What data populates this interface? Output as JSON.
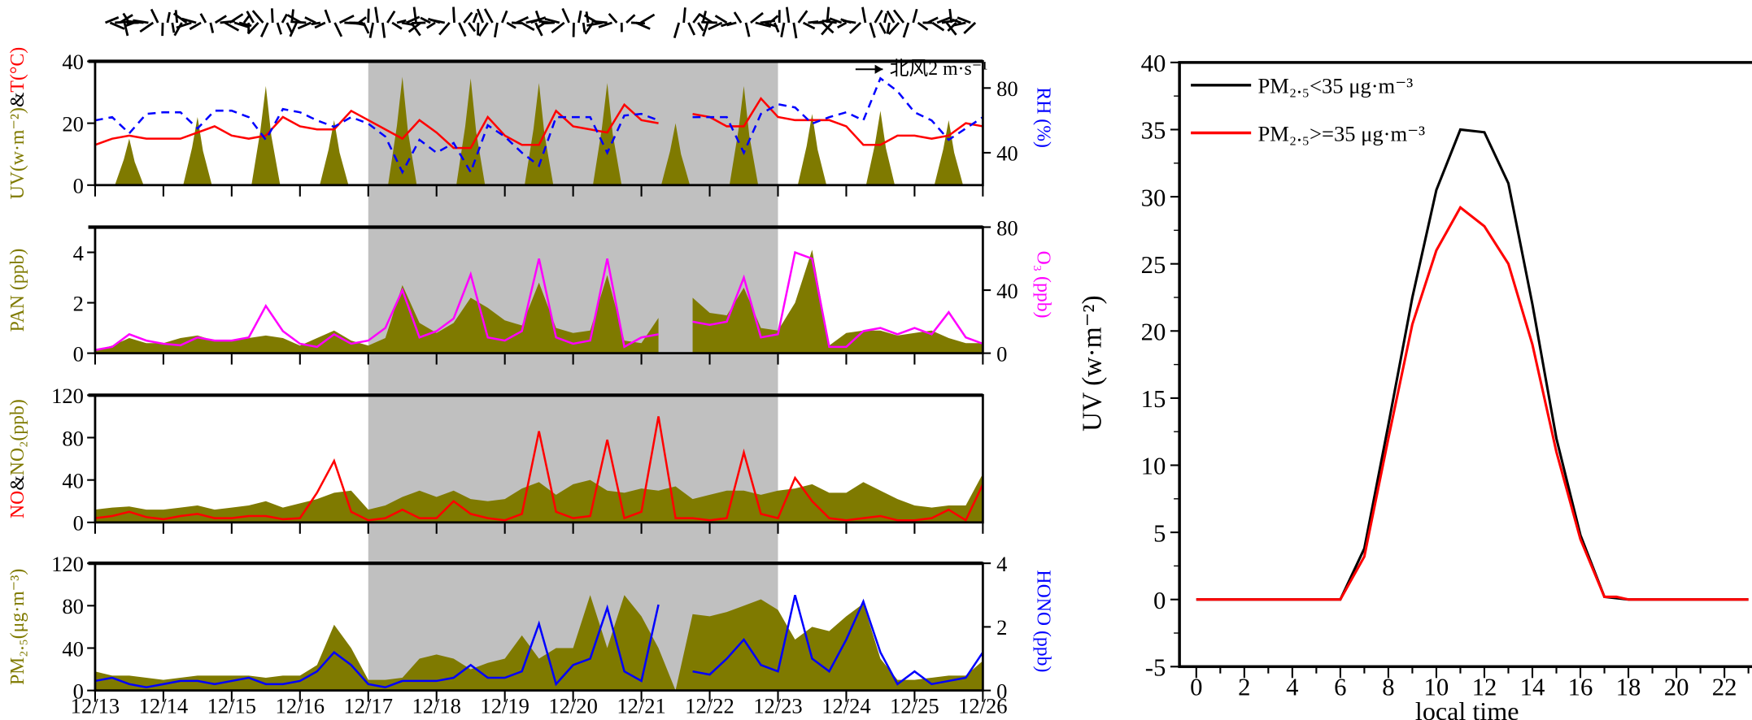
{
  "chart_data": [
    {
      "type": "line",
      "description_panels": "multi-panel time series",
      "x_tick_labels": [
        "12/13",
        "12/14",
        "12/15",
        "12/16",
        "12/17",
        "12/18",
        "12/19",
        "12/20",
        "12/21",
        "12/22",
        "12/23",
        "12/24",
        "12/25",
        "12/26"
      ],
      "x_start_day": 0,
      "x_end_day": 13,
      "sample_step_days": 0.25,
      "shaded_period_days": [
        4,
        10
      ],
      "shade_color": "#c0c0c0",
      "wind_legend": "北风2 m·s⁻¹",
      "panels": [
        {
          "left_label": {
            "a": "UV(w·m⁻²)",
            "b": "&",
            "c": "T(°C)"
          },
          "left_ylim": [
            0,
            40
          ],
          "left_ticks": [
            "0",
            "20",
            "40"
          ],
          "left_tick_values": [
            0,
            20,
            40
          ],
          "right_label": "RH (%)",
          "right_ylim": [
            20,
            96.5
          ],
          "right_ticks": [
            "40",
            "80"
          ],
          "right_tick_values": [
            40,
            80
          ],
          "series": [
            {
              "name": "UV",
              "kind": "daily-peak-area",
              "axis": "left",
              "color": "#7f7a00",
              "values": [
                15,
                22,
                32,
                21,
                35,
                34.5,
                33,
                33,
                20,
                32,
                23,
                24,
                21
              ]
            },
            {
              "name": "T",
              "kind": "line",
              "axis": "left",
              "color": "#ff0000",
              "values": [
                13,
                15,
                16,
                15,
                15,
                15,
                17,
                19,
                16,
                15,
                16,
                22,
                19,
                18,
                18,
                24,
                21,
                18,
                15,
                21,
                17,
                12,
                12,
                22,
                16,
                13,
                13,
                24,
                19,
                18,
                17,
                26,
                21,
                20,
                null,
                23,
                22,
                19,
                19,
                28,
                22,
                21,
                21,
                21,
                19,
                13,
                13,
                16,
                16,
                15,
                16,
                20,
                19
              ]
            },
            {
              "name": "RH",
              "kind": "dashed",
              "axis": "right",
              "color": "#0000ff",
              "values": [
                60,
                62,
                52,
                64,
                65,
                65,
                55,
                66,
                66,
                62,
                48,
                67,
                65,
                60,
                56,
                62,
                58,
                50,
                28,
                48,
                40,
                46,
                28,
                57,
                50,
                40,
                32,
                62,
                62,
                62,
                40,
                63,
                64,
                60,
                null,
                62,
                62,
                62,
                40,
                64,
                70,
                68,
                58,
                62,
                65,
                60,
                86,
                78,
                65,
                60,
                48,
                55,
                62
              ]
            }
          ]
        },
        {
          "left_label": {
            "a": "PAN (ppb)",
            "b": "",
            "c": ""
          },
          "left_ylim": [
            0,
            5
          ],
          "left_ticks": [
            "0",
            "2",
            "4"
          ],
          "left_tick_values": [
            0,
            2,
            4
          ],
          "right_label": "O₃ (ppb)",
          "right_ylim": [
            0,
            80
          ],
          "right_ticks": [
            "0",
            "40",
            "80"
          ],
          "right_tick_values": [
            0,
            40,
            80
          ],
          "series": [
            {
              "name": "PAN",
              "kind": "area",
              "axis": "left",
              "color": "#7f7a00",
              "values": [
                0.1,
                0.3,
                0.6,
                0.4,
                0.4,
                0.6,
                0.7,
                0.5,
                0.5,
                0.6,
                0.7,
                0.6,
                0.3,
                0.6,
                0.9,
                0.5,
                0.3,
                0.6,
                2.7,
                1.2,
                0.8,
                1.2,
                2.2,
                1.8,
                1.3,
                1.1,
                2.8,
                1.0,
                0.8,
                0.9,
                3.1,
                0.5,
                0.4,
                1.4,
                null,
                2.2,
                1.6,
                1.5,
                2.6,
                1.0,
                0.9,
                2.0,
                4.1,
                0.3,
                0.8,
                0.9,
                0.9,
                0.7,
                0.8,
                0.9,
                0.6,
                0.4,
                0.4
              ]
            },
            {
              "name": "O3",
              "kind": "line",
              "axis": "right",
              "color": "#ff00ff",
              "values": [
                2,
                4,
                12,
                8,
                6,
                5,
                10,
                8,
                8,
                10,
                30,
                14,
                6,
                4,
                12,
                6,
                8,
                16,
                40,
                10,
                14,
                22,
                50,
                10,
                8,
                14,
                60,
                10,
                6,
                8,
                60,
                4,
                10,
                12,
                null,
                20,
                18,
                20,
                48,
                10,
                12,
                64,
                60,
                4,
                4,
                14,
                16,
                12,
                16,
                12,
                26,
                10,
                6
              ]
            }
          ]
        },
        {
          "left_label": {
            "a": "NO",
            "b": "&",
            "c": "NO₂(ppb)"
          },
          "left_ylim": [
            0,
            120
          ],
          "left_ticks": [
            "0",
            "40",
            "80",
            "120"
          ],
          "left_tick_values": [
            0,
            40,
            80,
            120
          ],
          "right_label": "",
          "right_ylim": [
            0,
            120
          ],
          "right_ticks": [],
          "right_tick_values": [],
          "series": [
            {
              "name": "NO2",
              "kind": "area",
              "axis": "left",
              "color": "#7f7a00",
              "values": [
                12,
                14,
                15,
                12,
                12,
                14,
                16,
                12,
                14,
                16,
                20,
                14,
                18,
                22,
                28,
                30,
                12,
                16,
                24,
                30,
                24,
                30,
                22,
                20,
                22,
                32,
                38,
                26,
                36,
                40,
                30,
                28,
                32,
                30,
                34,
                22,
                26,
                30,
                30,
                26,
                30,
                32,
                36,
                28,
                28,
                38,
                30,
                22,
                16,
                14,
                16,
                16,
                46
              ]
            },
            {
              "name": "NO",
              "kind": "line",
              "axis": "left",
              "color": "#ff0000",
              "values": [
                4,
                6,
                10,
                5,
                3,
                6,
                8,
                4,
                4,
                6,
                6,
                3,
                4,
                28,
                58,
                10,
                2,
                4,
                12,
                4,
                4,
                20,
                8,
                4,
                2,
                8,
                86,
                10,
                4,
                6,
                78,
                4,
                10,
                100,
                4,
                4,
                2,
                4,
                66,
                8,
                4,
                42,
                20,
                4,
                2,
                4,
                6,
                2,
                2,
                4,
                12,
                2,
                36
              ]
            }
          ]
        },
        {
          "left_label": {
            "a": "PM₂.₅(μg·m⁻³)",
            "b": "",
            "c": ""
          },
          "left_ylim": [
            0,
            120
          ],
          "left_ticks": [
            "0",
            "40",
            "80",
            "120"
          ],
          "left_tick_values": [
            0,
            40,
            80,
            120
          ],
          "right_label": "HONO (ppb)",
          "right_ylim": [
            0,
            4
          ],
          "right_ticks": [
            "0",
            "2",
            "4"
          ],
          "right_tick_values": [
            0,
            2,
            4
          ],
          "series": [
            {
              "name": "PM2.5",
              "kind": "area",
              "axis": "left",
              "color": "#7f7a00",
              "values": [
                18,
                14,
                14,
                12,
                10,
                12,
                14,
                14,
                14,
                14,
                12,
                14,
                14,
                24,
                62,
                40,
                10,
                10,
                12,
                30,
                34,
                30,
                20,
                26,
                30,
                52,
                30,
                40,
                40,
                90,
                40,
                90,
                70,
                40,
                0,
                72,
                70,
                74,
                80,
                86,
                76,
                48,
                60,
                56,
                70,
                82,
                30,
                10,
                10,
                12,
                14,
                14,
                28
              ]
            },
            {
              "name": "HONO",
              "kind": "line",
              "axis": "right",
              "color": "#0000ff",
              "values": [
                0.3,
                0.4,
                0.2,
                0.1,
                0.2,
                0.3,
                0.3,
                0.2,
                0.3,
                0.4,
                0.2,
                0.2,
                0.3,
                0.6,
                1.2,
                0.8,
                0.2,
                0.1,
                0.3,
                0.3,
                0.3,
                0.4,
                0.8,
                0.4,
                0.4,
                0.6,
                2.1,
                0.2,
                0.8,
                1.0,
                2.6,
                0.6,
                0.3,
                2.7,
                null,
                0.6,
                0.5,
                1.0,
                1.6,
                0.8,
                0.6,
                3.0,
                1.0,
                0.6,
                1.6,
                2.8,
                1.2,
                0.2,
                0.6,
                0.2,
                0.3,
                0.4,
                1.2
              ]
            }
          ]
        }
      ]
    },
    {
      "type": "line",
      "xlabel": "local time",
      "ylabel": "UV (w·m⁻²)",
      "xlim": [
        -0.7,
        24.3
      ],
      "ylim": [
        -5,
        40
      ],
      "x_ticks": [
        "0",
        "2",
        "4",
        "6",
        "8",
        "10",
        "12",
        "14",
        "16",
        "18",
        "20",
        "22",
        "24"
      ],
      "y_ticks": [
        "-5",
        "0",
        "5",
        "10",
        "15",
        "20",
        "25",
        "30",
        "35",
        "40"
      ],
      "legend_position": "top-left",
      "series": [
        {
          "name": "PM₂.₅<35 μg·m⁻³",
          "color": "#000000",
          "x": [
            0,
            1,
            2,
            3,
            4,
            5,
            6,
            7,
            8,
            9,
            10,
            11,
            12,
            13,
            14,
            15,
            16,
            17,
            18,
            19,
            20,
            21,
            22,
            23
          ],
          "y": [
            0,
            0,
            0,
            0,
            0,
            0,
            0,
            3.8,
            13,
            22.5,
            30.5,
            35,
            34.8,
            31,
            22,
            12,
            4.8,
            0.2,
            0,
            0,
            0,
            0,
            0,
            0
          ]
        },
        {
          "name": "PM₂.₅>=35 μg·m⁻³",
          "color": "#ff0000",
          "x": [
            0,
            1,
            2,
            3,
            4,
            5,
            6,
            7,
            8,
            9,
            10,
            11,
            12,
            13,
            14,
            15,
            16,
            17,
            17.5,
            18,
            19,
            20,
            21,
            22,
            23
          ],
          "y": [
            0,
            0,
            0,
            0,
            0,
            0,
            0,
            3.2,
            12,
            20.5,
            26,
            29.2,
            27.8,
            25,
            19,
            11,
            4.5,
            0.2,
            0.2,
            0,
            0,
            0,
            0,
            0,
            0
          ]
        }
      ]
    }
  ]
}
